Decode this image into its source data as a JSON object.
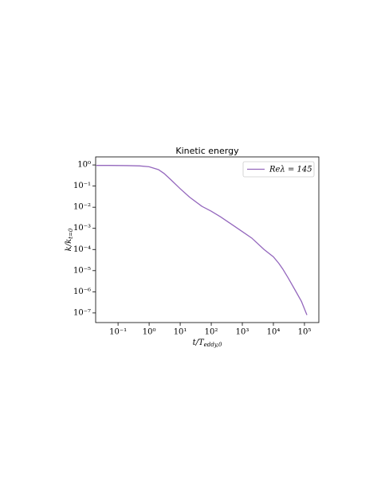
{
  "chart_data": {
    "type": "line",
    "title": "Kinetic energy",
    "x_label": [
      "t/T",
      "eddy,0"
    ],
    "y_label": [
      "k/k",
      "t=0"
    ],
    "log_x": true,
    "log_y": true,
    "legend": "upper right",
    "xlim": [
      0.019,
      290000
    ],
    "ylim": [
      3.5e-08,
      2.4
    ],
    "xticks": [
      {
        "value": 0.1,
        "label": "10⁻¹"
      },
      {
        "value": 1,
        "label": "10⁰"
      },
      {
        "value": 10,
        "label": "10¹"
      },
      {
        "value": 100,
        "label": "10²"
      },
      {
        "value": 1000,
        "label": "10³"
      },
      {
        "value": 10000,
        "label": "10⁴"
      },
      {
        "value": 100000,
        "label": "10⁵"
      }
    ],
    "yticks": [
      {
        "value": 1,
        "label": "10⁰"
      },
      {
        "value": 0.1,
        "label": "10⁻¹"
      },
      {
        "value": 0.01,
        "label": "10⁻²"
      },
      {
        "value": 0.001,
        "label": "10⁻³"
      },
      {
        "value": 0.0001,
        "label": "10⁻⁴"
      },
      {
        "value": 1e-05,
        "label": "10⁻⁵"
      },
      {
        "value": 1e-06,
        "label": "10⁻⁶"
      },
      {
        "value": 1e-07,
        "label": "10⁻⁷"
      }
    ],
    "x": [
      0.02,
      0.05,
      0.1,
      0.2,
      0.5,
      1,
      2,
      3,
      5,
      10,
      20,
      50,
      100,
      200,
      500,
      1000,
      2000,
      5000,
      10000,
      15000,
      20000,
      30000,
      50000,
      80000,
      120000
    ],
    "series": [
      {
        "name": "Reλ = 145",
        "color": "#9467bd",
        "values": [
          0.95,
          0.95,
          0.94,
          0.93,
          0.9,
          0.82,
          0.6,
          0.4,
          0.2,
          0.075,
          0.03,
          0.011,
          0.0065,
          0.0035,
          0.0014,
          0.0007,
          0.00035,
          0.0001,
          4.5e-05,
          2.2e-05,
          1.2e-05,
          4.5e-06,
          1.2e-06,
          3.5e-07,
          8e-08
        ]
      }
    ]
  }
}
